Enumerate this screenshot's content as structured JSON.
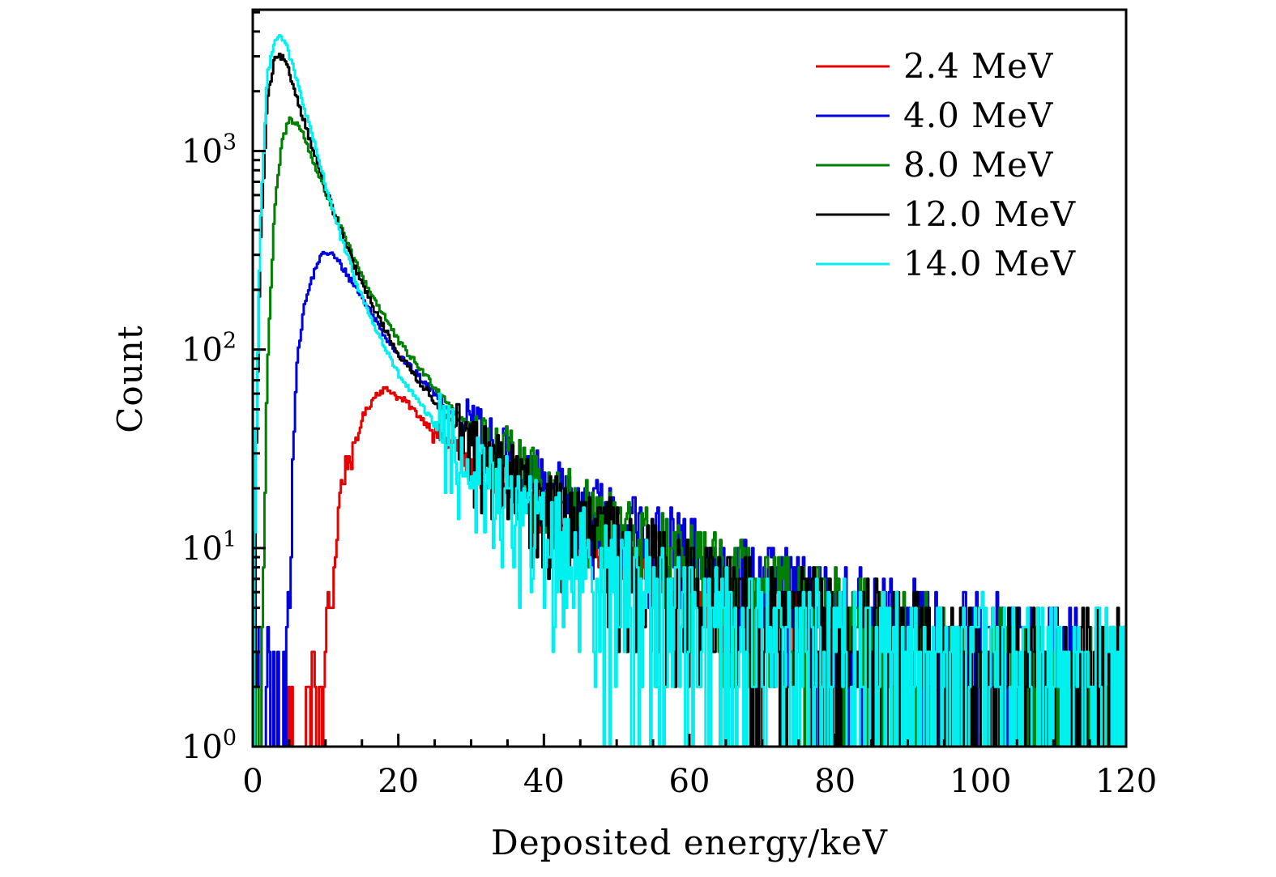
{
  "chart_data": {
    "type": "line",
    "subtype": "histogram-step",
    "title": "",
    "xlabel": "Deposited energy/keV",
    "ylabel": "Count",
    "xlim": [
      0,
      120
    ],
    "ylim": [
      1,
      5150
    ],
    "yscale": "log",
    "grid": false,
    "legend_position": "top-right",
    "x_ticks": [
      0,
      20,
      40,
      60,
      80,
      100,
      120
    ],
    "x_tick_labels": [
      "0",
      "20",
      "40",
      "60",
      "80",
      "100",
      "120"
    ],
    "y_ticks": [
      1,
      10,
      100,
      1000
    ],
    "y_tick_labels": [
      {
        "base": "10",
        "exp": "0"
      },
      {
        "base": "10",
        "exp": "1"
      },
      {
        "base": "10",
        "exp": "2"
      },
      {
        "base": "10",
        "exp": "3"
      }
    ],
    "series": [
      {
        "name": "2.4 MeV",
        "color": "#e60000",
        "envelope": {
          "x": [
            4.5,
            5,
            7,
            8.5,
            9.5,
            10,
            11,
            12,
            13,
            14,
            15,
            16,
            17,
            18,
            19,
            20,
            21,
            22,
            24,
            26,
            28,
            30,
            40,
            60,
            80,
            86
          ],
          "y": [
            1,
            1.3,
            1.0,
            2.4,
            1.0,
            4,
            6,
            19,
            28,
            30,
            45,
            52,
            60,
            63,
            62,
            57,
            55,
            50,
            42,
            36,
            32,
            25,
            14,
            6,
            4,
            3
          ]
        },
        "noise": 0.12,
        "xmax": 86
      },
      {
        "name": "4.0 MeV",
        "color": "#0000e0",
        "envelope": {
          "x": [
            0,
            1,
            4.5,
            5,
            6,
            7,
            8,
            9,
            10,
            11,
            12,
            14,
            16,
            18,
            20,
            25,
            30,
            40,
            50,
            60,
            70,
            80,
            90,
            100,
            110,
            120
          ],
          "y": [
            2,
            2,
            1,
            8,
            80,
            160,
            220,
            280,
            310,
            300,
            270,
            210,
            160,
            120,
            95,
            60,
            38,
            20,
            13,
            9,
            6,
            4.5,
            3.5,
            3,
            2.5,
            2
          ]
        },
        "noise": 0.35,
        "xmax": 120
      },
      {
        "name": "8.0 MeV",
        "color": "#008000",
        "envelope": {
          "x": [
            0,
            1,
            1.5,
            2,
            3,
            4,
            5,
            6,
            7,
            8,
            10,
            12,
            14,
            16,
            18,
            20,
            25,
            30,
            40,
            50,
            60,
            70,
            80,
            90,
            100,
            110,
            120
          ],
          "y": [
            1,
            1,
            10,
            80,
            500,
            1100,
            1450,
            1400,
            1200,
            950,
            620,
            420,
            280,
            200,
            150,
            110,
            65,
            40,
            20,
            12,
            8,
            5.5,
            4,
            3,
            2.5,
            2,
            2
          ]
        },
        "noise": 0.35,
        "xmax": 118
      },
      {
        "name": "12.0 MeV",
        "color": "#000000",
        "envelope": {
          "x": [
            0,
            0.5,
            1,
            2,
            3,
            4,
            5,
            6,
            8,
            10,
            12,
            14,
            16,
            18,
            20,
            25,
            30,
            40,
            50,
            60,
            70,
            80,
            90,
            100,
            110,
            120
          ],
          "y": [
            1,
            30,
            300,
            1800,
            2900,
            3000,
            2500,
            1900,
            1100,
            650,
            400,
            260,
            180,
            130,
            95,
            55,
            32,
            16,
            10,
            6,
            4.5,
            3.5,
            2.8,
            2.3,
            2,
            2
          ]
        },
        "noise": 0.4,
        "xmax": 120
      },
      {
        "name": "14.0 MeV",
        "color": "#00f0f0",
        "envelope": {
          "x": [
            0,
            0.5,
            1,
            2,
            3,
            4,
            5,
            6,
            8,
            10,
            12,
            14,
            16,
            18,
            20,
            25,
            30,
            40,
            50,
            60,
            70,
            80,
            90,
            100,
            110,
            120
          ],
          "y": [
            1,
            40,
            400,
            2400,
            3700,
            3800,
            3100,
            2300,
            1250,
            680,
            380,
            230,
            150,
            105,
            75,
            42,
            25,
            12,
            7,
            4.5,
            3.5,
            3,
            2.5,
            2.2,
            2,
            2
          ]
        },
        "noise": 0.45,
        "xmax": 120
      }
    ]
  }
}
